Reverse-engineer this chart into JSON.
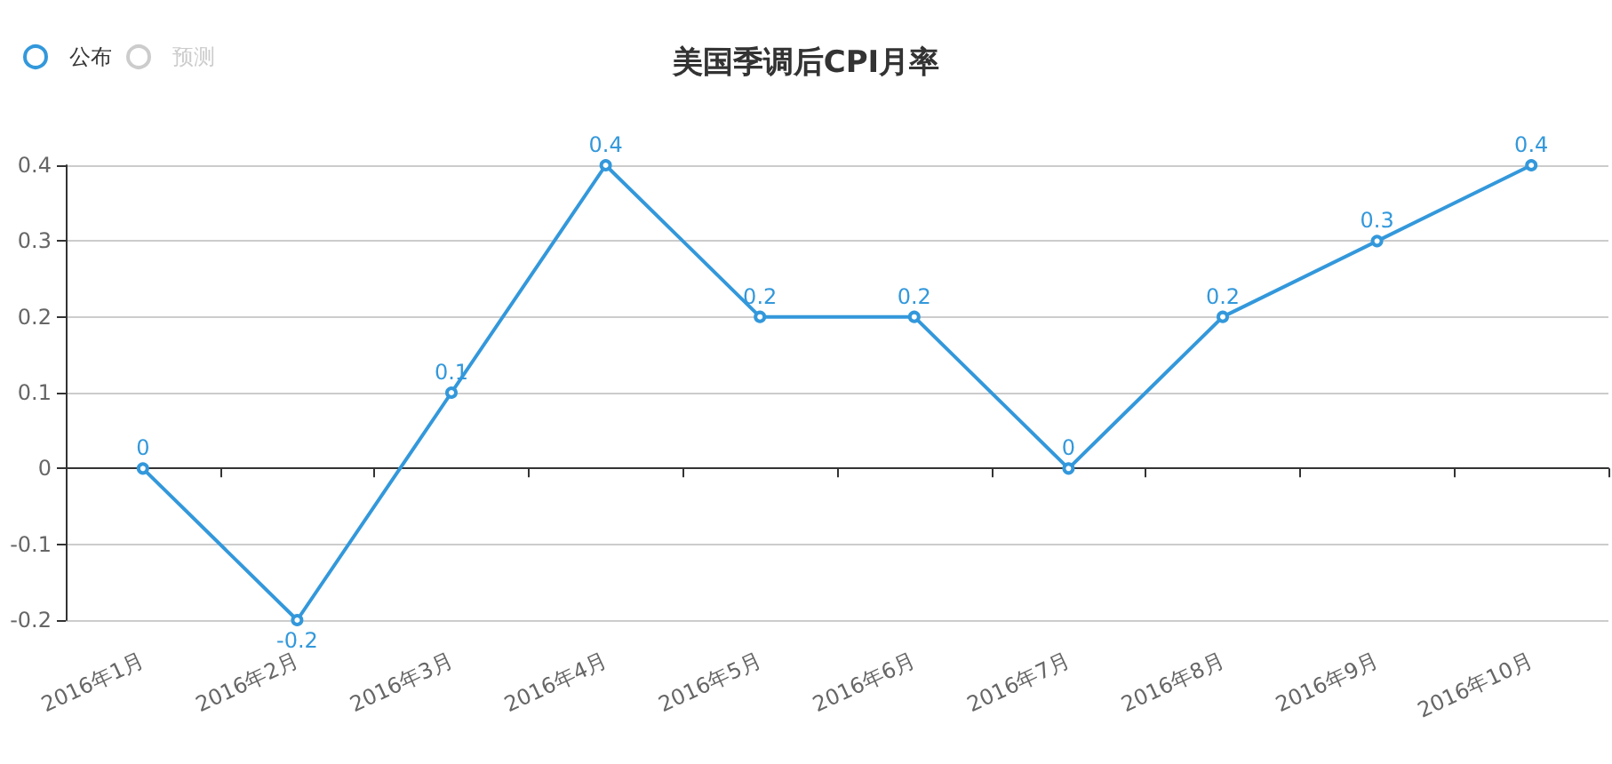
{
  "chart_data": {
    "type": "line",
    "title": "美国季调后CPI月率",
    "categories": [
      "2016年1月",
      "2016年2月",
      "2016年3月",
      "2016年4月",
      "2016年5月",
      "2016年6月",
      "2016年7月",
      "2016年8月",
      "2016年9月",
      "2016年10月"
    ],
    "series": [
      {
        "name": "公布",
        "color": "#3398db",
        "values": [
          0,
          -0.2,
          0.1,
          0.4,
          0.2,
          0.2,
          0,
          0.2,
          0.3,
          0.4
        ]
      },
      {
        "name": "预测",
        "color": "#cccccc",
        "values": [
          null,
          null,
          null,
          null,
          null,
          null,
          null,
          null,
          null,
          null
        ]
      }
    ],
    "ylim": [
      -0.2,
      0.4
    ],
    "yticks": [
      -0.2,
      -0.1,
      0,
      0.1,
      0.2,
      0.3,
      0.4
    ],
    "grid": "y",
    "legend": "top left",
    "marker": "circle",
    "line_style": "solid",
    "data_labels": true
  }
}
